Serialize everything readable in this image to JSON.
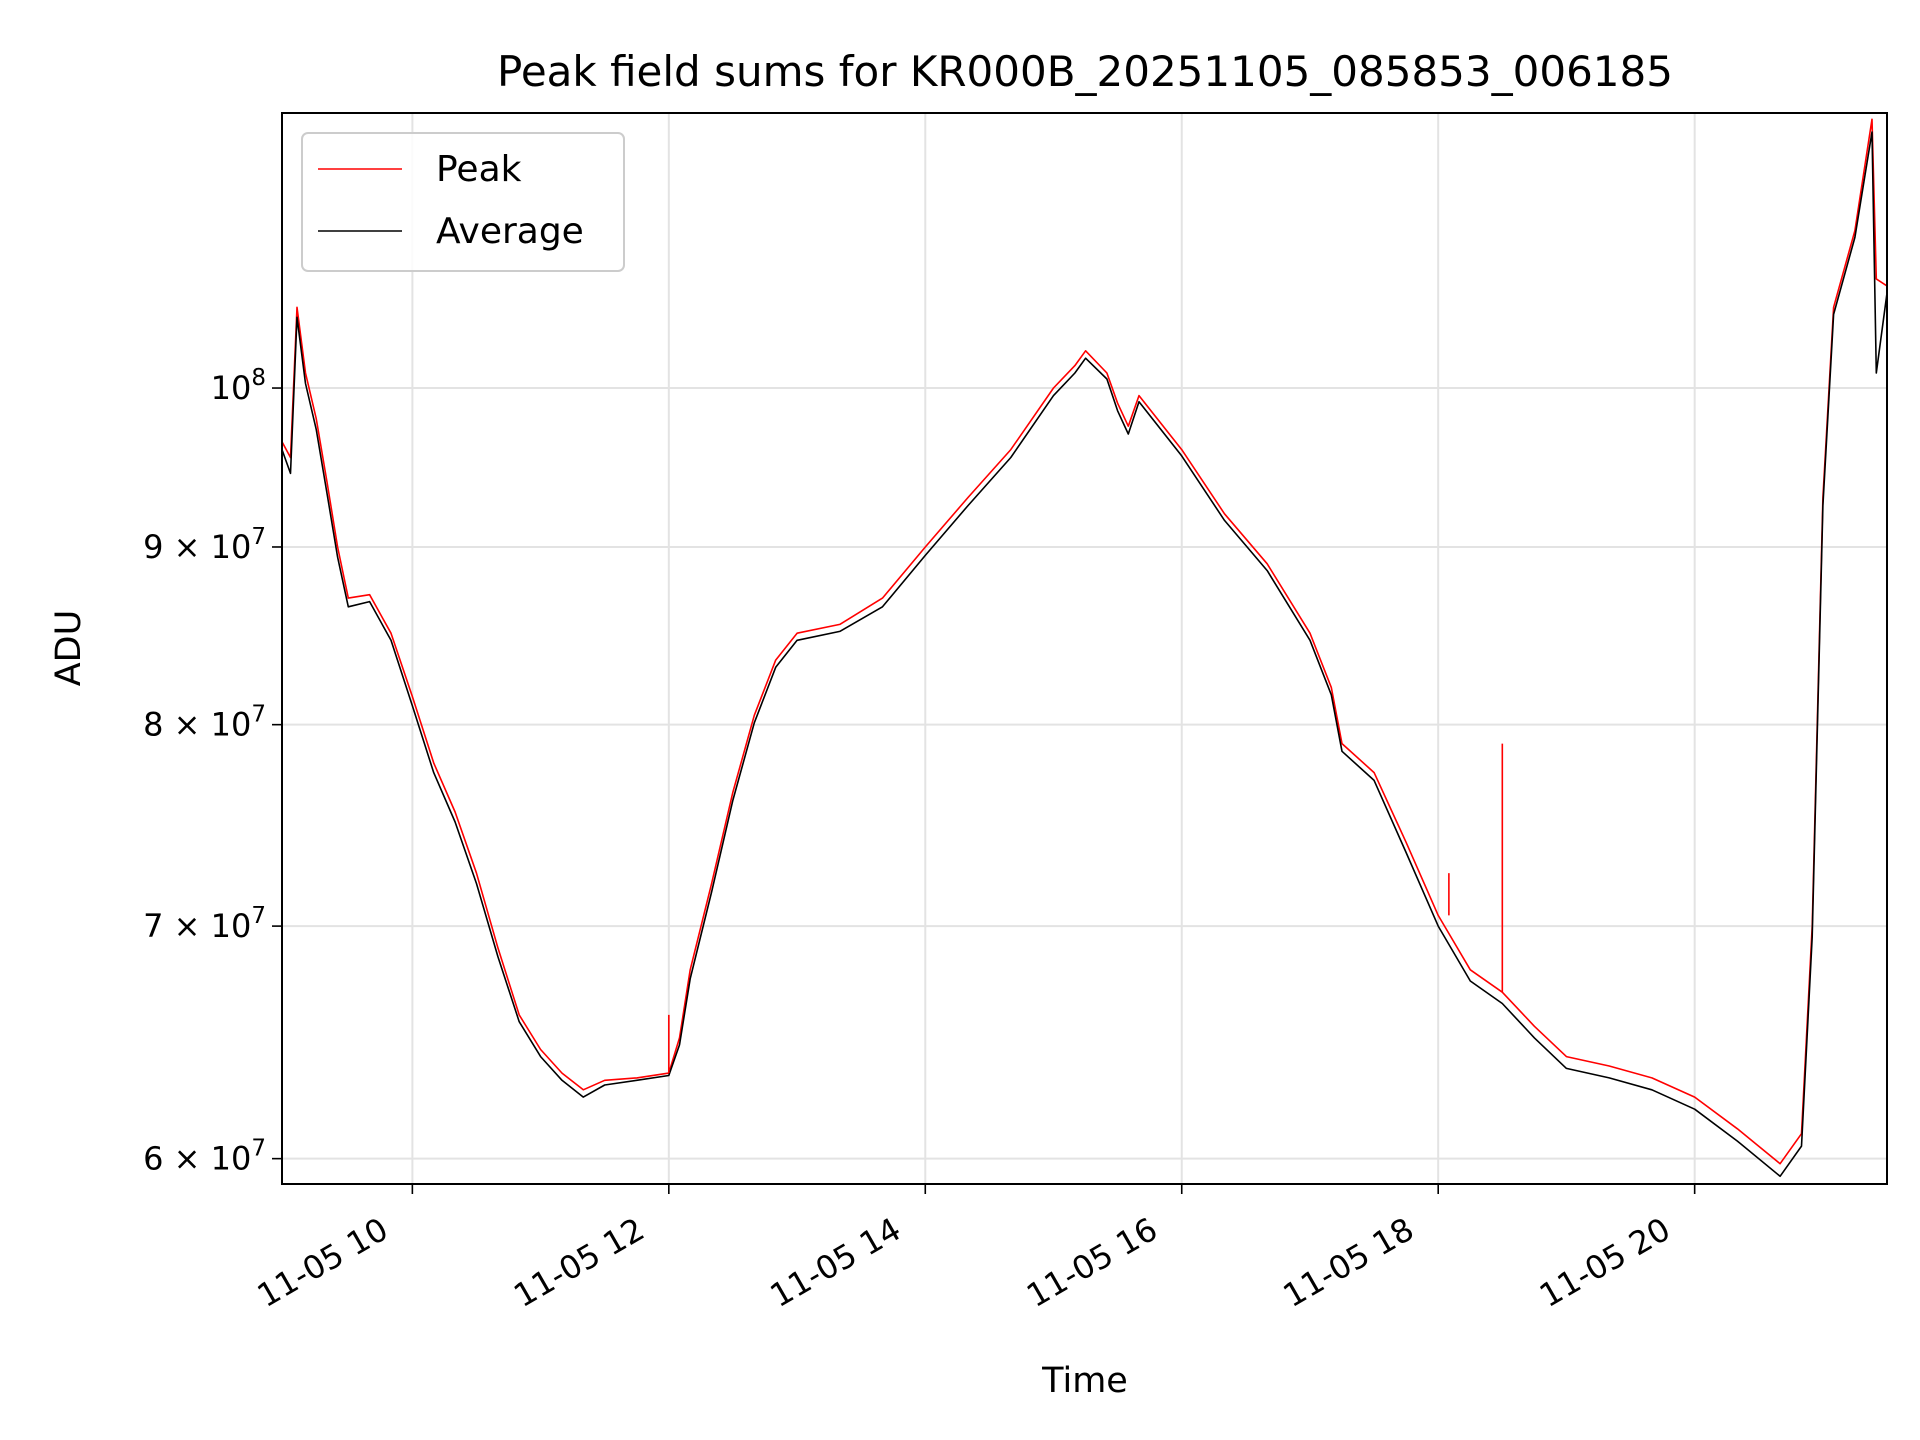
{
  "chart_data": {
    "type": "line",
    "title": "Peak field sums for KR000B_20251105_085853_006185",
    "xlabel": "Time",
    "ylabel": "ADU",
    "x_range": [
      "2025-11-05 08:59",
      "2025-11-05 21:30"
    ],
    "ylim": [
      59000000,
      120000000
    ],
    "yscale": "log",
    "grid": true,
    "legend": "upper left",
    "x_ticks": [
      {
        "x": "2025-11-05 10:00",
        "label": "11-05 10"
      },
      {
        "x": "2025-11-05 12:00",
        "label": "11-05 12"
      },
      {
        "x": "2025-11-05 14:00",
        "label": "11-05 14"
      },
      {
        "x": "2025-11-05 16:00",
        "label": "11-05 16"
      },
      {
        "x": "2025-11-05 18:00",
        "label": "11-05 18"
      },
      {
        "x": "2025-11-05 20:00",
        "label": "11-05 20"
      }
    ],
    "y_ticks": [
      {
        "y": 60000000,
        "label": "6 × 10",
        "exp": "7"
      },
      {
        "y": 70000000,
        "label": "7 × 10",
        "exp": "7"
      },
      {
        "y": 80000000,
        "label": "8 × 10",
        "exp": "7"
      },
      {
        "y": 90000000,
        "label": "9 × 10",
        "exp": "7"
      },
      {
        "y": 100000000,
        "label": "10",
        "exp": "8"
      }
    ],
    "series": [
      {
        "name": "Peak",
        "color": "#ff0000",
        "points": [
          [
            "2025-11-05 08:59",
            96500000
          ],
          [
            "2025-11-05 09:03",
            95500000
          ],
          [
            "2025-11-05 09:06",
            105500000
          ],
          [
            "2025-11-05 09:10",
            101000000
          ],
          [
            "2025-11-05 09:15",
            98000000
          ],
          [
            "2025-11-05 09:20",
            94000000
          ],
          [
            "2025-11-05 09:25",
            90000000
          ],
          [
            "2025-11-05 09:30",
            87000000
          ],
          [
            "2025-11-05 09:40",
            87200000
          ],
          [
            "2025-11-05 09:50",
            85000000
          ],
          [
            "2025-11-05 10:00",
            81500000
          ],
          [
            "2025-11-05 10:10",
            78000000
          ],
          [
            "2025-11-05 10:20",
            75500000
          ],
          [
            "2025-11-05 10:30",
            72500000
          ],
          [
            "2025-11-05 10:40",
            69000000
          ],
          [
            "2025-11-05 10:50",
            66000000
          ],
          [
            "2025-11-05 11:00",
            64500000
          ],
          [
            "2025-11-05 11:10",
            63500000
          ],
          [
            "2025-11-05 11:20",
            62800000
          ],
          [
            "2025-11-05 11:30",
            63200000
          ],
          [
            "2025-11-05 11:45",
            63300000
          ],
          [
            "2025-11-05 12:00",
            63500000
          ],
          [
            "2025-11-05 12:05",
            65000000
          ],
          [
            "2025-11-05 12:10",
            68000000
          ],
          [
            "2025-11-05 12:20",
            72000000
          ],
          [
            "2025-11-05 12:30",
            76500000
          ],
          [
            "2025-11-05 12:40",
            80500000
          ],
          [
            "2025-11-05 12:50",
            83500000
          ],
          [
            "2025-11-05 13:00",
            85000000
          ],
          [
            "2025-11-05 13:20",
            85500000
          ],
          [
            "2025-11-05 13:40",
            87000000
          ],
          [
            "2025-11-05 14:00",
            90000000
          ],
          [
            "2025-11-05 14:20",
            93000000
          ],
          [
            "2025-11-05 14:40",
            96000000
          ],
          [
            "2025-11-05 15:00",
            100000000
          ],
          [
            "2025-11-05 15:10",
            101500000
          ],
          [
            "2025-11-05 15:15",
            102500000
          ],
          [
            "2025-11-05 15:25",
            101000000
          ],
          [
            "2025-11-05 15:30",
            99000000
          ],
          [
            "2025-11-05 15:35",
            97500000
          ],
          [
            "2025-11-05 15:40",
            99500000
          ],
          [
            "2025-11-05 16:00",
            96000000
          ],
          [
            "2025-11-05 16:20",
            92000000
          ],
          [
            "2025-11-05 16:40",
            89000000
          ],
          [
            "2025-11-05 17:00",
            85000000
          ],
          [
            "2025-11-05 17:10",
            82000000
          ],
          [
            "2025-11-05 17:15",
            79000000
          ],
          [
            "2025-11-05 17:30",
            77500000
          ],
          [
            "2025-11-05 17:45",
            74000000
          ],
          [
            "2025-11-05 18:00",
            70500000
          ],
          [
            "2025-11-05 18:15",
            68000000
          ],
          [
            "2025-11-05 18:30",
            67000000
          ],
          [
            "2025-11-05 18:45",
            65500000
          ],
          [
            "2025-11-05 19:00",
            64200000
          ],
          [
            "2025-11-05 19:20",
            63800000
          ],
          [
            "2025-11-05 19:40",
            63300000
          ],
          [
            "2025-11-05 20:00",
            62500000
          ],
          [
            "2025-11-05 20:20",
            61200000
          ],
          [
            "2025-11-05 20:40",
            59800000
          ],
          [
            "2025-11-05 20:50",
            61000000
          ],
          [
            "2025-11-05 20:55",
            70000000
          ],
          [
            "2025-11-05 21:00",
            93000000
          ],
          [
            "2025-11-05 21:05",
            105500000
          ],
          [
            "2025-11-05 21:15",
            111000000
          ],
          [
            "2025-11-05 21:23",
            119500000
          ],
          [
            "2025-11-05 21:25",
            107500000
          ],
          [
            "2025-11-05 21:30",
            107000000
          ]
        ]
      },
      {
        "name": "Average",
        "color": "#000000",
        "points": [
          [
            "2025-11-05 08:59",
            96000000
          ],
          [
            "2025-11-05 09:03",
            94500000
          ],
          [
            "2025-11-05 09:06",
            104800000
          ],
          [
            "2025-11-05 09:10",
            100300000
          ],
          [
            "2025-11-05 09:15",
            97300000
          ],
          [
            "2025-11-05 09:20",
            93300000
          ],
          [
            "2025-11-05 09:25",
            89400000
          ],
          [
            "2025-11-05 09:30",
            86500000
          ],
          [
            "2025-11-05 09:40",
            86800000
          ],
          [
            "2025-11-05 09:50",
            84600000
          ],
          [
            "2025-11-05 10:00",
            81000000
          ],
          [
            "2025-11-05 10:10",
            77500000
          ],
          [
            "2025-11-05 10:20",
            75000000
          ],
          [
            "2025-11-05 10:30",
            72000000
          ],
          [
            "2025-11-05 10:40",
            68600000
          ],
          [
            "2025-11-05 10:50",
            65700000
          ],
          [
            "2025-11-05 11:00",
            64200000
          ],
          [
            "2025-11-05 11:10",
            63200000
          ],
          [
            "2025-11-05 11:20",
            62500000
          ],
          [
            "2025-11-05 11:30",
            63000000
          ],
          [
            "2025-11-05 11:45",
            63200000
          ],
          [
            "2025-11-05 12:00",
            63400000
          ],
          [
            "2025-11-05 12:05",
            64700000
          ],
          [
            "2025-11-05 12:10",
            67600000
          ],
          [
            "2025-11-05 12:20",
            71600000
          ],
          [
            "2025-11-05 12:30",
            76100000
          ],
          [
            "2025-11-05 12:40",
            80100000
          ],
          [
            "2025-11-05 12:50",
            83100000
          ],
          [
            "2025-11-05 13:00",
            84600000
          ],
          [
            "2025-11-05 13:20",
            85100000
          ],
          [
            "2025-11-05 13:40",
            86500000
          ],
          [
            "2025-11-05 14:00",
            89500000
          ],
          [
            "2025-11-05 14:20",
            92500000
          ],
          [
            "2025-11-05 14:40",
            95500000
          ],
          [
            "2025-11-05 15:00",
            99500000
          ],
          [
            "2025-11-05 15:10",
            101000000
          ],
          [
            "2025-11-05 15:15",
            102000000
          ],
          [
            "2025-11-05 15:25",
            100600000
          ],
          [
            "2025-11-05 15:30",
            98500000
          ],
          [
            "2025-11-05 15:35",
            97000000
          ],
          [
            "2025-11-05 15:40",
            99100000
          ],
          [
            "2025-11-05 16:00",
            95600000
          ],
          [
            "2025-11-05 16:20",
            91600000
          ],
          [
            "2025-11-05 16:40",
            88600000
          ],
          [
            "2025-11-05 17:00",
            84600000
          ],
          [
            "2025-11-05 17:10",
            81600000
          ],
          [
            "2025-11-05 17:15",
            78600000
          ],
          [
            "2025-11-05 17:30",
            77100000
          ],
          [
            "2025-11-05 17:45",
            73500000
          ],
          [
            "2025-11-05 18:00",
            70000000
          ],
          [
            "2025-11-05 18:15",
            67500000
          ],
          [
            "2025-11-05 18:30",
            66500000
          ],
          [
            "2025-11-05 18:45",
            65000000
          ],
          [
            "2025-11-05 19:00",
            63700000
          ],
          [
            "2025-11-05 19:20",
            63300000
          ],
          [
            "2025-11-05 19:40",
            62800000
          ],
          [
            "2025-11-05 20:00",
            62000000
          ],
          [
            "2025-11-05 20:20",
            60700000
          ],
          [
            "2025-11-05 20:40",
            59300000
          ],
          [
            "2025-11-05 20:50",
            60500000
          ],
          [
            "2025-11-05 20:55",
            69500000
          ],
          [
            "2025-11-05 21:00",
            92500000
          ],
          [
            "2025-11-05 21:05",
            105000000
          ],
          [
            "2025-11-05 21:15",
            110500000
          ],
          [
            "2025-11-05 21:23",
            118500000
          ],
          [
            "2025-11-05 21:25",
            101000000
          ],
          [
            "2025-11-05 21:30",
            106500000
          ]
        ]
      }
    ],
    "annotations": [
      {
        "series": "Peak",
        "type": "spike",
        "x": "2025-11-05 18:30",
        "y": 79000000
      },
      {
        "series": "Peak",
        "type": "spike",
        "x": "2025-11-05 18:05",
        "y": 72500000
      },
      {
        "series": "Peak",
        "type": "spike",
        "x": "2025-11-05 12:00",
        "y": 66000000
      }
    ]
  }
}
